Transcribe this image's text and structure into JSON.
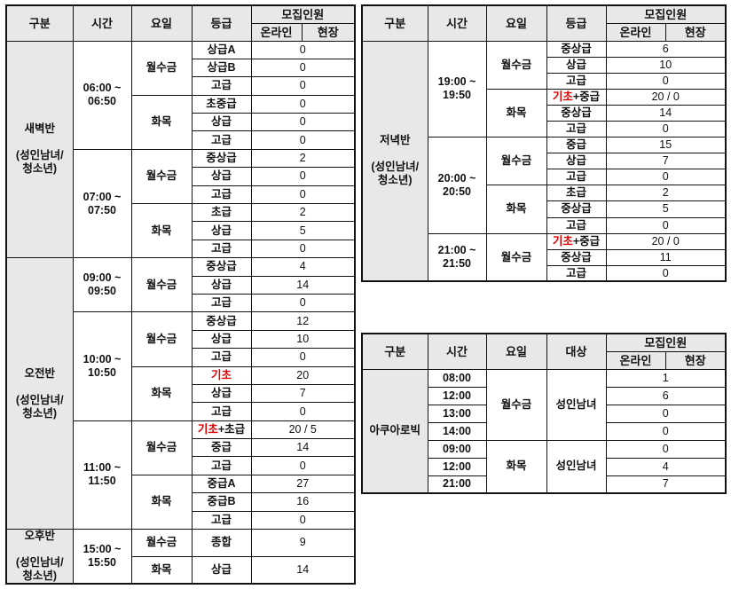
{
  "tables": [
    {
      "type": "grade",
      "headers": {
        "gubun": "구분",
        "time": "시간",
        "day": "요일",
        "col4": "등급",
        "recruit": "모집인원",
        "online": "온라인",
        "onsite": "현장"
      },
      "sections": [
        {
          "name": "새벽반",
          "sub": "(성인남녀/\n청소년)",
          "times": [
            {
              "time": "06:00 ~\n06:50",
              "days": [
                {
                  "day": "월수금",
                  "rows": [
                    {
                      "grade": "상급A",
                      "count": "0"
                    },
                    {
                      "grade": "상급B",
                      "count": "0"
                    },
                    {
                      "grade": "고급",
                      "count": "0"
                    }
                  ]
                },
                {
                  "day": "화목",
                  "rows": [
                    {
                      "grade": "초중급",
                      "count": "0"
                    },
                    {
                      "grade": "상급",
                      "count": "0"
                    },
                    {
                      "grade": "고급",
                      "count": "0"
                    }
                  ]
                }
              ]
            },
            {
              "time": "07:00 ~\n07:50",
              "days": [
                {
                  "day": "월수금",
                  "rows": [
                    {
                      "grade": "중상급",
                      "count": "2"
                    },
                    {
                      "grade": "상급",
                      "count": "0"
                    },
                    {
                      "grade": "고급",
                      "count": "0"
                    }
                  ]
                },
                {
                  "day": "화목",
                  "rows": [
                    {
                      "grade": "초급",
                      "count": "2"
                    },
                    {
                      "grade": "상급",
                      "count": "5"
                    },
                    {
                      "grade": "고급",
                      "count": "0"
                    }
                  ]
                }
              ]
            }
          ]
        },
        {
          "name": "오전반",
          "sub": "(성인남녀/\n청소년)",
          "times": [
            {
              "time": "09:00 ~\n09:50",
              "days": [
                {
                  "day": "월수금",
                  "rows": [
                    {
                      "grade": "중상급",
                      "count": "4"
                    },
                    {
                      "grade": "상급",
                      "count": "14"
                    },
                    {
                      "grade": "고급",
                      "count": "0"
                    }
                  ]
                }
              ]
            },
            {
              "time": "10:00 ~\n10:50",
              "days": [
                {
                  "day": "월수금",
                  "rows": [
                    {
                      "grade": "중상급",
                      "count": "12"
                    },
                    {
                      "grade": "상급",
                      "count": "10"
                    },
                    {
                      "grade": "고급",
                      "count": "0"
                    }
                  ]
                },
                {
                  "day": "화목",
                  "rows": [
                    {
                      "grade_red": "기초",
                      "grade": "",
                      "count": "20"
                    },
                    {
                      "grade": "상급",
                      "count": "7"
                    },
                    {
                      "grade": "고급",
                      "count": "0"
                    }
                  ]
                }
              ]
            },
            {
              "time": "11:00 ~\n11:50",
              "days": [
                {
                  "day": "월수금",
                  "rows": [
                    {
                      "grade_red": "기초",
                      "grade": "+초급",
                      "count": "20 / 5"
                    },
                    {
                      "grade": "중급",
                      "count": "14"
                    },
                    {
                      "grade": "고급",
                      "count": "0"
                    }
                  ]
                },
                {
                  "day": "화목",
                  "rows": [
                    {
                      "grade": "중급A",
                      "count": "27"
                    },
                    {
                      "grade": "중급B",
                      "count": "16"
                    },
                    {
                      "grade": "고급",
                      "count": "0"
                    }
                  ]
                }
              ]
            }
          ]
        },
        {
          "name": "오후반",
          "sub": "(성인남녀/\n청소년)",
          "times": [
            {
              "time": "15:00 ~\n15:50",
              "days": [
                {
                  "day": "월수금",
                  "rows": [
                    {
                      "grade": "종합",
                      "count": "9"
                    }
                  ]
                },
                {
                  "day": "화목",
                  "rows": [
                    {
                      "grade": "상급",
                      "count": "14"
                    }
                  ]
                }
              ]
            }
          ]
        }
      ]
    },
    {
      "type": "grade",
      "headers": {
        "gubun": "구분",
        "time": "시간",
        "day": "요일",
        "col4": "등급",
        "recruit": "모집인원",
        "online": "온라인",
        "onsite": "현장"
      },
      "sections": [
        {
          "name": "저녁반",
          "sub": "(성인남녀/\n청소년)",
          "times": [
            {
              "time": "19:00 ~\n19:50",
              "days": [
                {
                  "day": "월수금",
                  "rows": [
                    {
                      "grade": "중상급",
                      "count": "6"
                    },
                    {
                      "grade": "상급",
                      "count": "10"
                    },
                    {
                      "grade": "고급",
                      "count": "0"
                    }
                  ]
                },
                {
                  "day": "화목",
                  "rows": [
                    {
                      "grade_red": "기초",
                      "grade": "+중급",
                      "count": "20 / 0"
                    },
                    {
                      "grade": "중상급",
                      "count": "14"
                    },
                    {
                      "grade": "고급",
                      "count": "0"
                    }
                  ]
                }
              ]
            },
            {
              "time": "20:00 ~\n20:50",
              "days": [
                {
                  "day": "월수금",
                  "rows": [
                    {
                      "grade": "중급",
                      "count": "15"
                    },
                    {
                      "grade": "상급",
                      "count": "7"
                    },
                    {
                      "grade": "고급",
                      "count": "0"
                    }
                  ]
                },
                {
                  "day": "화목",
                  "rows": [
                    {
                      "grade": "초급",
                      "count": "2"
                    },
                    {
                      "grade": "중상급",
                      "count": "5"
                    },
                    {
                      "grade": "고급",
                      "count": "0"
                    }
                  ]
                }
              ]
            },
            {
              "time": "21:00 ~\n21:50",
              "days": [
                {
                  "day": "월수금",
                  "rows": [
                    {
                      "grade_red": "기초",
                      "grade": "+중급",
                      "count": "20 / 0"
                    },
                    {
                      "grade": "중상급",
                      "count": "11"
                    },
                    {
                      "grade": "고급",
                      "count": "0"
                    }
                  ]
                }
              ]
            }
          ]
        }
      ]
    },
    {
      "type": "target",
      "headers": {
        "gubun": "구분",
        "time": "시간",
        "day": "요일",
        "col4": "대상",
        "recruit": "모집인원",
        "online": "온라인",
        "onsite": "현장"
      },
      "sections": [
        {
          "name": "아쿠아로빅",
          "days": [
            {
              "day": "월수금",
              "target": "성인남녀",
              "rows": [
                {
                  "time": "08:00",
                  "count": "1"
                },
                {
                  "time": "12:00",
                  "count": "6"
                },
                {
                  "time": "13:00",
                  "count": "0"
                },
                {
                  "time": "14:00",
                  "count": "0"
                }
              ]
            },
            {
              "day": "화목",
              "target": "성인남녀",
              "rows": [
                {
                  "time": "09:00",
                  "count": "0"
                },
                {
                  "time": "12:00",
                  "count": "4"
                },
                {
                  "time": "21:00",
                  "count": "7"
                }
              ]
            }
          ]
        }
      ]
    }
  ],
  "colors": {
    "header_bg": "#e8e8e8",
    "highlight": "#e00000",
    "border": "#111111"
  }
}
